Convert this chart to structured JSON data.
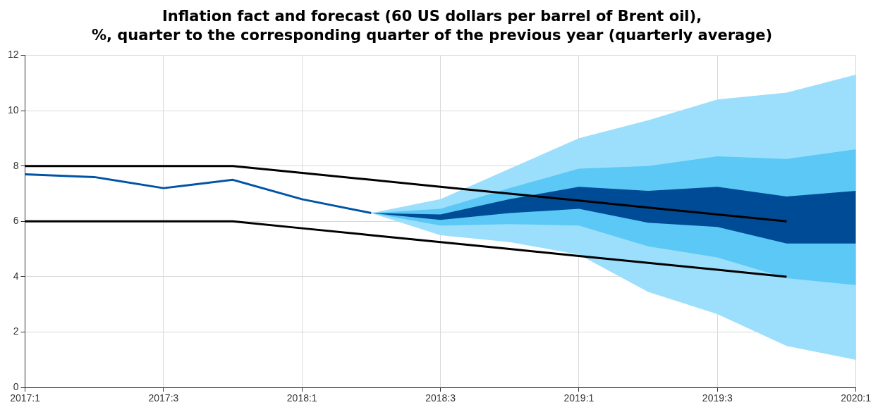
{
  "chart_data": {
    "type": "line",
    "title": "Inflation fact and forecast (60 US dollars per barrel of Brent oil),",
    "subtitle": "%, quarter to the corresponding quarter of the previous year (quarterly average)",
    "categories": [
      "2017:1",
      null,
      "2017:3",
      null,
      "2018:1",
      null,
      "2018:3",
      null,
      "2019:1",
      null,
      "2019:3",
      null,
      "2020:1"
    ],
    "series": [
      {
        "type": "area",
        "color": "#9bdffc",
        "values": [
          null,
          null,
          null,
          null,
          null,
          null,
          null,
          null,
          null,
          null,
          null,
          null,
          null
        ],
        "lower": [
          null,
          null,
          null,
          null,
          null,
          6.3,
          5.5,
          5.25,
          4.8,
          3.45,
          2.65,
          1.5,
          1.0
        ],
        "upper": [
          null,
          null,
          null,
          null,
          null,
          6.3,
          6.8,
          7.9,
          9.0,
          9.65,
          10.4,
          10.65,
          11.3
        ]
      },
      {
        "type": "area",
        "color": "#5bc8f5",
        "values": [
          null,
          null,
          null,
          null,
          null,
          null,
          null,
          null,
          null,
          null,
          null,
          null,
          null
        ],
        "lower": [
          null,
          null,
          null,
          null,
          null,
          6.3,
          5.85,
          5.9,
          5.85,
          5.1,
          4.7,
          3.95,
          3.7
        ],
        "upper": [
          null,
          null,
          null,
          null,
          null,
          6.3,
          6.45,
          7.2,
          7.9,
          8.0,
          8.35,
          8.25,
          8.6
        ]
      },
      {
        "type": "area",
        "color": "#004b96",
        "values": [
          null,
          null,
          null,
          null,
          null,
          null,
          null,
          null,
          null,
          null,
          null,
          null,
          null
        ],
        "lower": [
          null,
          null,
          null,
          null,
          null,
          6.3,
          6.05,
          6.3,
          6.45,
          5.95,
          5.8,
          5.2,
          5.2
        ],
        "upper": [
          null,
          null,
          null,
          null,
          null,
          6.3,
          6.25,
          6.8,
          7.25,
          7.1,
          7.25,
          6.9,
          7.1
        ]
      },
      {
        "type": "line",
        "color": "#0054a6",
        "values": [
          7.7,
          7.6,
          7.2,
          7.5,
          6.8,
          6.3,
          null,
          null,
          null,
          null,
          null,
          null,
          null
        ]
      },
      {
        "type": "line",
        "color": "#000000",
        "values": [
          8,
          8,
          8,
          8,
          7.75,
          7.5,
          7.25,
          7.0,
          6.75,
          6.5,
          6.25,
          6.0,
          null
        ]
      },
      {
        "type": "line",
        "color": "#000000",
        "values": [
          6,
          6,
          6,
          6,
          5.75,
          5.5,
          5.25,
          5.0,
          4.75,
          4.5,
          4.25,
          4.0,
          null
        ]
      }
    ],
    "ylim": [
      0,
      12
    ],
    "yticks": [
      0,
      2,
      4,
      6,
      8,
      10,
      12
    ],
    "grid": true,
    "legend": false,
    "marker": "none",
    "line_style": "solid"
  }
}
